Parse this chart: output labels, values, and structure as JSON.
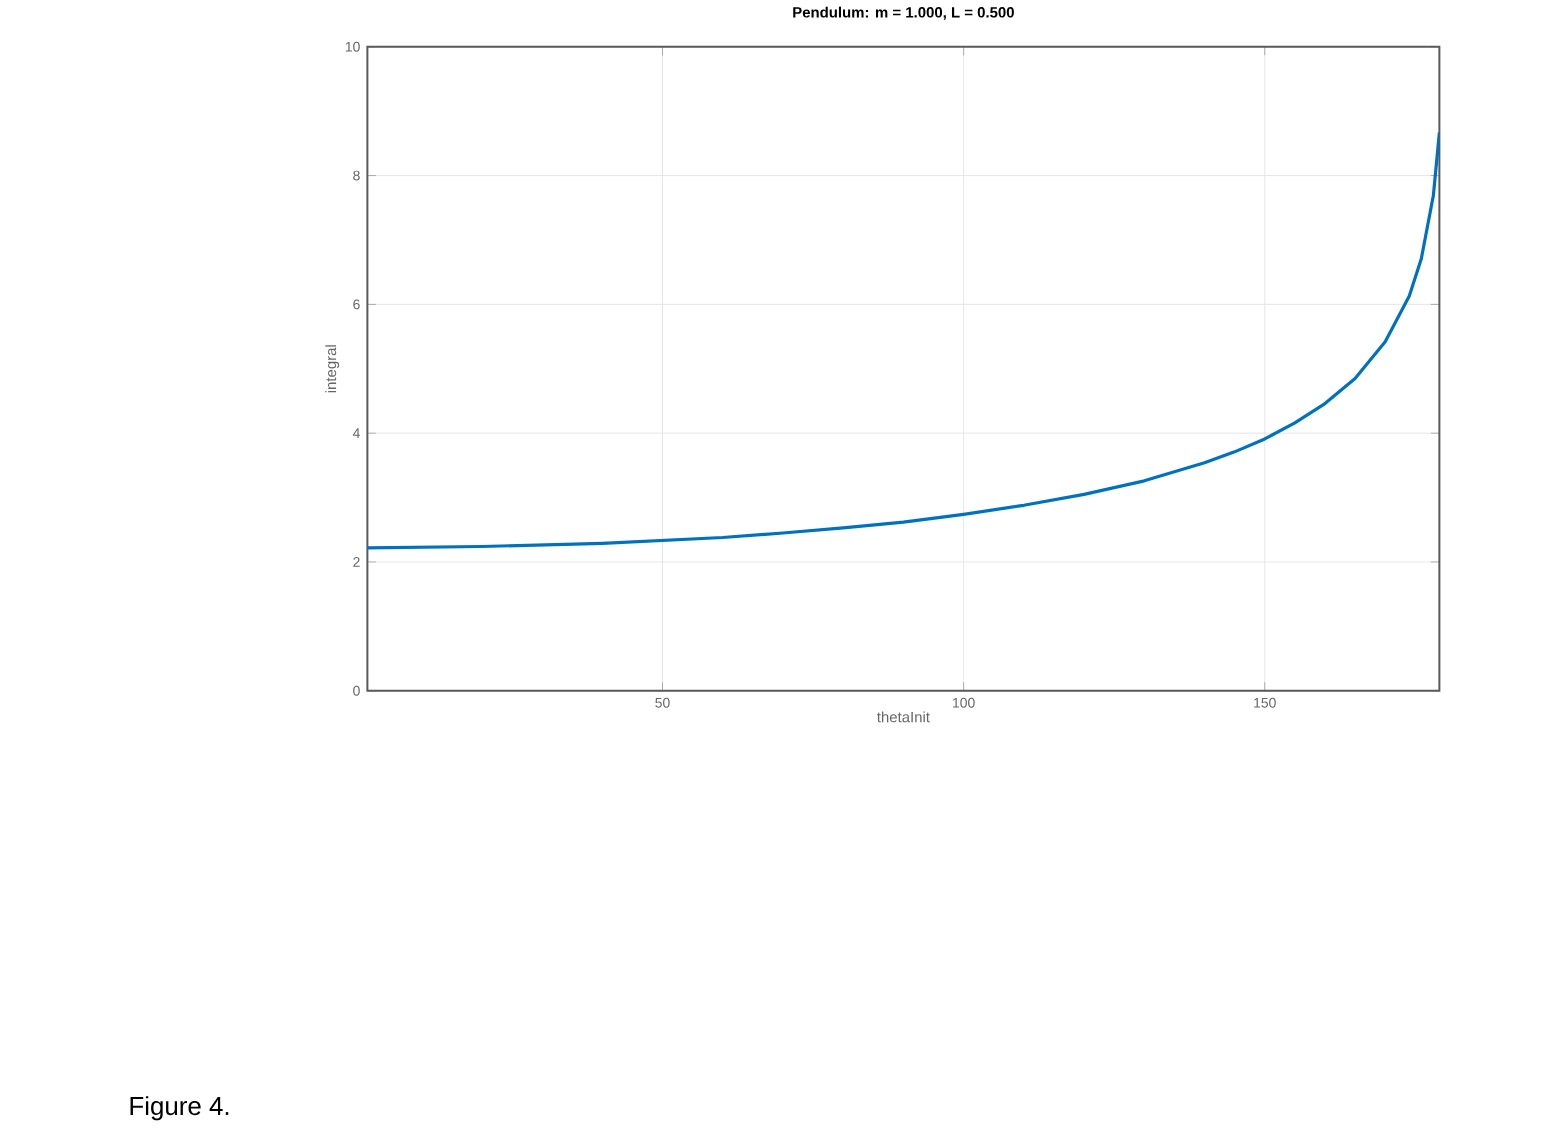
{
  "chart_data": {
    "type": "line",
    "title": "Pendulum: m = 1.000, L = 0.500",
    "xlabel": "thetaInit",
    "ylabel": "integral",
    "x": [
      1,
      20,
      40,
      60,
      70,
      80,
      90,
      100,
      110,
      120,
      130,
      140,
      145,
      150,
      155,
      160,
      165,
      170,
      174,
      176,
      178,
      179
    ],
    "series": [
      {
        "color": "#0072bd",
        "values": [
          2.22,
          2.24,
          2.29,
          2.38,
          2.45,
          2.53,
          2.62,
          2.74,
          2.88,
          3.05,
          3.26,
          3.54,
          3.71,
          3.91,
          4.16,
          4.46,
          4.85,
          5.42,
          6.13,
          6.71,
          7.69,
          8.67
        ]
      }
    ],
    "xlim": [
      1,
      179
    ],
    "ylim": [
      0,
      10
    ],
    "xticks": [
      50,
      100,
      150
    ],
    "yticks": [
      0,
      2,
      4,
      6,
      8,
      10
    ],
    "grid": true,
    "marker": "none",
    "line_style": "solid",
    "annotations": [
      "Figure 4."
    ]
  }
}
